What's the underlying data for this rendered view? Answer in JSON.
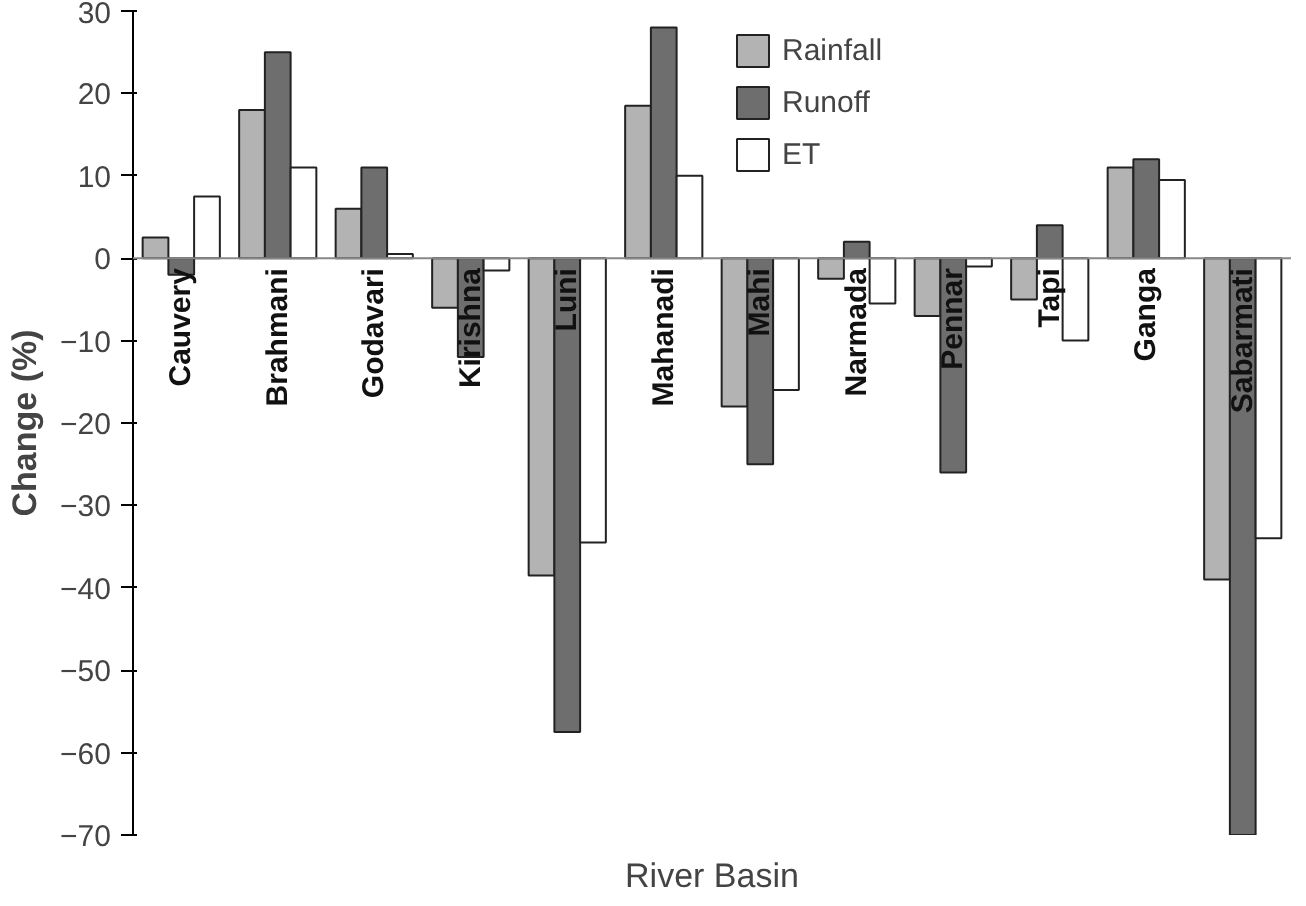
{
  "chart_data": {
    "type": "bar",
    "xlabel": "River Basin",
    "ylabel": "Change (%)",
    "categories": [
      "Cauvery",
      "Brahmani",
      "Godavari",
      "Kirishna",
      "Luni",
      "Mahanadi",
      "Mahi",
      "Narmada",
      "Pennar",
      "Tapi",
      "Ganga",
      "Sabarmati"
    ],
    "series": [
      {
        "name": "Rainfall",
        "color": "#b3b3b3",
        "values": [
          2.5,
          18,
          6,
          -6,
          -38.5,
          18.5,
          -18,
          -2.5,
          -7,
          -5,
          11,
          -39
        ]
      },
      {
        "name": "Runoff",
        "color": "#6e6e6e",
        "values": [
          -2,
          25,
          11,
          -12,
          -57.5,
          28,
          -25,
          2,
          -26,
          4,
          12,
          -70
        ]
      },
      {
        "name": "ET",
        "color": "#ffffff",
        "values": [
          7.5,
          11,
          0.5,
          -1.5,
          -34.5,
          10,
          -16,
          -5.5,
          -1,
          -10,
          9.5,
          -34
        ]
      }
    ],
    "ylim": [
      -70,
      30
    ],
    "yticks": [
      -70,
      -60,
      -50,
      -40,
      -30,
      -20,
      -10,
      0,
      10,
      20,
      30
    ],
    "grid": false,
    "legend": "top"
  }
}
